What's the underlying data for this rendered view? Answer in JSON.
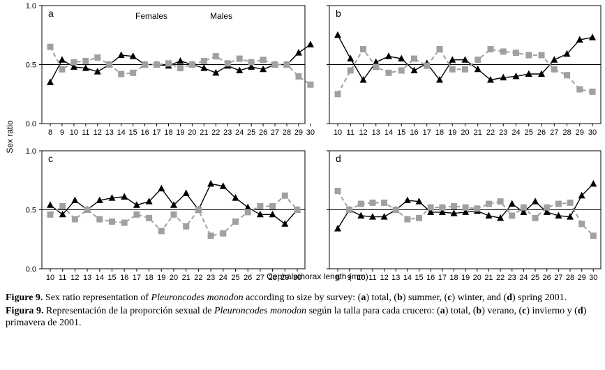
{
  "chart_data": [
    {
      "type": "line",
      "panel": "a",
      "title": "a",
      "categories": [
        "8",
        "9",
        "10",
        "11",
        "12",
        "13",
        "14",
        "15",
        "16",
        "17",
        "18",
        "19",
        "20",
        "21",
        "22",
        "23",
        "24",
        "25",
        "26",
        "27",
        "28",
        "29",
        "30"
      ],
      "series": [
        {
          "name": "Females",
          "style": "black-solid-triangle",
          "values": [
            0.35,
            0.54,
            0.48,
            0.47,
            0.44,
            0.5,
            0.58,
            0.57,
            0.5,
            0.5,
            0.49,
            0.53,
            0.5,
            0.47,
            0.43,
            0.49,
            0.45,
            0.48,
            0.46,
            0.5,
            0.5,
            0.6,
            0.67
          ]
        },
        {
          "name": "Males",
          "style": "gray-dashed-square",
          "values": [
            0.65,
            0.46,
            0.52,
            0.53,
            0.56,
            0.5,
            0.42,
            0.43,
            0.5,
            0.5,
            0.51,
            0.47,
            0.5,
            0.53,
            0.57,
            0.51,
            0.55,
            0.52,
            0.54,
            0.5,
            0.5,
            0.4,
            0.33
          ]
        }
      ],
      "ylim": [
        0,
        1
      ],
      "yticks": [
        "0.0",
        "0.5",
        "1.0"
      ],
      "reference_line": 0.5,
      "legend_labels": [
        "Females",
        "Males"
      ]
    },
    {
      "type": "line",
      "panel": "b",
      "title": "b",
      "categories": [
        "10",
        "11",
        "12",
        "13",
        "14",
        "15",
        "16",
        "17",
        "18",
        "19",
        "20",
        "21",
        "22",
        "23",
        "24",
        "25",
        "26",
        "27",
        "28",
        "29",
        "30"
      ],
      "series": [
        {
          "name": "Females",
          "style": "black-solid-triangle",
          "values": [
            0.75,
            0.55,
            0.37,
            0.52,
            0.57,
            0.55,
            0.45,
            0.51,
            0.37,
            0.54,
            0.54,
            0.46,
            0.37,
            0.39,
            0.4,
            0.42,
            0.42,
            0.54,
            0.59,
            0.71,
            0.73
          ]
        },
        {
          "name": "Males",
          "style": "gray-dashed-square",
          "values": [
            0.25,
            0.45,
            0.63,
            0.48,
            0.43,
            0.45,
            0.55,
            0.49,
            0.63,
            0.46,
            0.46,
            0.54,
            0.63,
            0.61,
            0.6,
            0.58,
            0.58,
            0.46,
            0.41,
            0.29,
            0.27
          ]
        }
      ],
      "ylim": [
        0,
        1
      ],
      "reference_line": 0.5
    },
    {
      "type": "line",
      "panel": "c",
      "title": "c",
      "categories": [
        "10",
        "11",
        "12",
        "13",
        "14",
        "15",
        "16",
        "17",
        "18",
        "19",
        "20",
        "21",
        "22",
        "23",
        "24",
        "25",
        "26",
        "27",
        "28",
        "29",
        "30"
      ],
      "series": [
        {
          "name": "Females",
          "style": "black-solid-triangle",
          "values": [
            0.54,
            0.46,
            0.58,
            0.5,
            0.58,
            0.6,
            0.61,
            0.54,
            0.57,
            0.68,
            0.54,
            0.64,
            0.5,
            0.72,
            0.7,
            0.6,
            0.52,
            0.46,
            0.46,
            0.38,
            0.5
          ]
        },
        {
          "name": "Males",
          "style": "gray-dashed-square",
          "values": [
            0.46,
            0.53,
            0.42,
            0.5,
            0.42,
            0.4,
            0.39,
            0.46,
            0.43,
            0.32,
            0.46,
            0.36,
            0.5,
            0.28,
            0.3,
            0.4,
            0.48,
            0.53,
            0.53,
            0.62,
            0.5
          ]
        }
      ],
      "ylim": [
        0,
        1
      ],
      "yticks": [
        "0.0",
        "0.5",
        "1.0"
      ],
      "reference_line": 0.5
    },
    {
      "type": "line",
      "panel": "d",
      "title": "d",
      "categories": [
        "8",
        "9",
        "10",
        "11",
        "12",
        "13",
        "14",
        "15",
        "16",
        "17",
        "18",
        "19",
        "20",
        "21",
        "22",
        "23",
        "24",
        "25",
        "26",
        "27",
        "28",
        "29",
        "30"
      ],
      "series": [
        {
          "name": "Females",
          "style": "black-solid-triangle",
          "values": [
            0.34,
            0.5,
            0.45,
            0.44,
            0.44,
            0.5,
            0.58,
            0.57,
            0.48,
            0.48,
            0.47,
            0.48,
            0.49,
            0.45,
            0.43,
            0.55,
            0.48,
            0.57,
            0.48,
            0.45,
            0.44,
            0.62,
            0.72
          ]
        },
        {
          "name": "Males",
          "style": "gray-dashed-square",
          "values": [
            0.66,
            0.5,
            0.55,
            0.56,
            0.56,
            0.5,
            0.42,
            0.43,
            0.52,
            0.52,
            0.53,
            0.52,
            0.51,
            0.55,
            0.57,
            0.45,
            0.52,
            0.43,
            0.52,
            0.55,
            0.56,
            0.38,
            0.28
          ]
        }
      ],
      "ylim": [
        0,
        1
      ],
      "reference_line": 0.5
    }
  ],
  "figure": {
    "ylabel": "Sex ratio",
    "xlabel": "Cephalothorax length (mm)"
  },
  "caption": {
    "en_label": "Figure 9.",
    "en_pre": " Sex ratio representation of ",
    "en_species": "Pleuroncodes monodon",
    "en_post": " according to size by survey: (",
    "en_a": "a",
    "en_a_txt": ") total, (",
    "en_b": "b",
    "en_b_txt": ") summer, (",
    "en_c": "c",
    "en_c_txt": ") winter, and (",
    "en_d": "d",
    "en_d_txt": ") spring 2001.",
    "es_label": "Figura 9.",
    "es_pre": " Representación de la proporción sexual de ",
    "es_species": "Pleuroncodes monodon",
    "es_post": " según la talla para cada crucero: (",
    "es_a": "a",
    "es_a_txt": ") total, (",
    "es_b": "b",
    "es_b_txt": ") verano, (",
    "es_c": "c",
    "es_c_txt": ") invierno y (",
    "es_d": "d",
    "es_d_txt": ") primavera de 2001."
  },
  "colors": {
    "females": "#000000",
    "males": "#a0a0a0",
    "axis": "#000000"
  }
}
